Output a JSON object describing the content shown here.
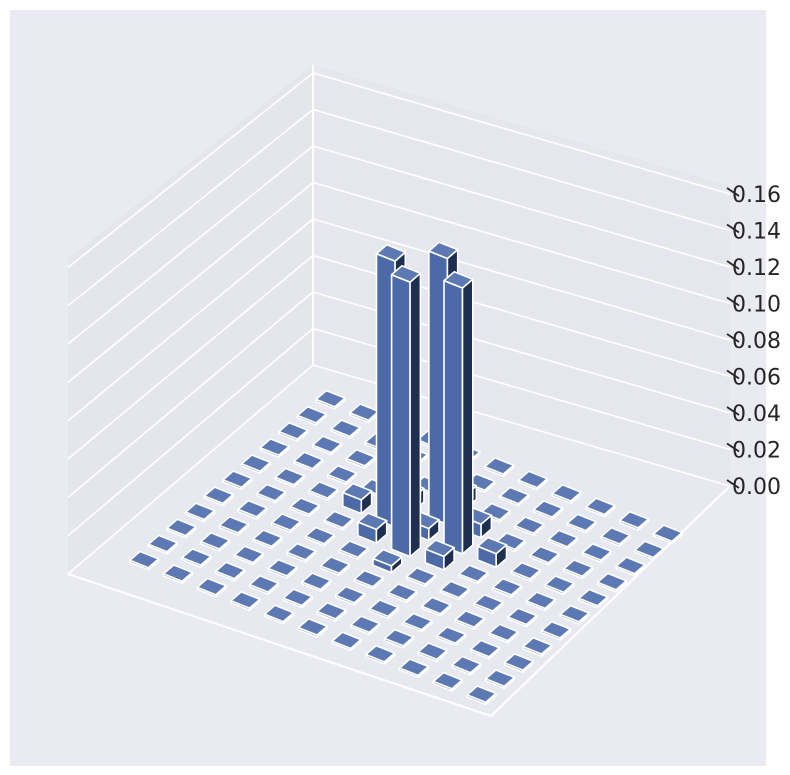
{
  "chart_data": {
    "type": "bar3d",
    "title": "",
    "xlabel": "",
    "ylabel": "",
    "zlabel": "",
    "grid": true,
    "grid_size": [
      11,
      11
    ],
    "zlim": [
      0,
      0.17
    ],
    "z_ticks": [
      "0.00",
      "0.02",
      "0.04",
      "0.06",
      "0.08",
      "0.10",
      "0.12",
      "0.14",
      "0.16"
    ],
    "values": [
      [
        0,
        0,
        0,
        0,
        0,
        0,
        0,
        0,
        0,
        0,
        0
      ],
      [
        0,
        0,
        0,
        0,
        0,
        0,
        0,
        0,
        0,
        0,
        0
      ],
      [
        0,
        0,
        0,
        0,
        0,
        0,
        0,
        0,
        0,
        0,
        0
      ],
      [
        0,
        0,
        0,
        0,
        0,
        0,
        0,
        0,
        0,
        0,
        0
      ],
      [
        0,
        0,
        0,
        0,
        0,
        0.004,
        0,
        0,
        0,
        0,
        0
      ],
      [
        0,
        0,
        0,
        0,
        0.008,
        0.16,
        0.008,
        0,
        0,
        0,
        0
      ],
      [
        0,
        0,
        0,
        0.008,
        0.155,
        0.007,
        0.155,
        0.008,
        0,
        0,
        0
      ],
      [
        0,
        0,
        0,
        0,
        0.008,
        0.155,
        0.008,
        0,
        0,
        0,
        0
      ],
      [
        0,
        0,
        0,
        0,
        0,
        0.008,
        0,
        0,
        0,
        0,
        0
      ],
      [
        0,
        0,
        0,
        0,
        0,
        0,
        0,
        0,
        0,
        0,
        0
      ],
      [
        0,
        0,
        0,
        0,
        0,
        0,
        0,
        0,
        0,
        0,
        0
      ]
    ],
    "colors": {
      "background": "#eaeaf2",
      "pane": "#e6e6ee",
      "grid": "#ffffff",
      "bar_top": "#5d79b3",
      "bar_front": "#4c6aa7",
      "bar_side": "#1f2f4f",
      "edge": "#ffffff"
    }
  }
}
